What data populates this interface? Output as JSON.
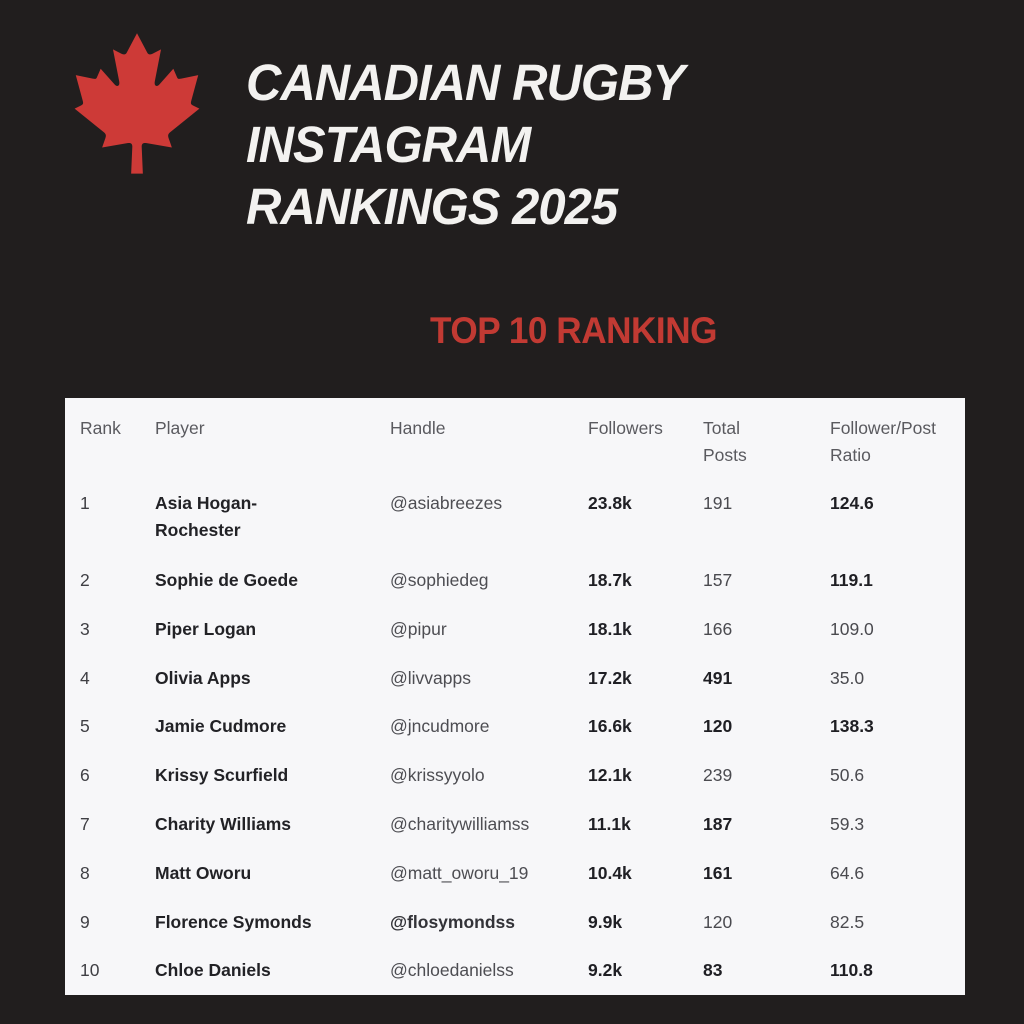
{
  "page": {
    "background_color": "#211e1e",
    "accent_red": "#cd3a37",
    "table_background": "#f7f7f9"
  },
  "header": {
    "logo": "maple-leaf-icon",
    "title_lines": [
      "CANADIAN RUGBY",
      "INSTAGRAM",
      "RANKINGS 2025"
    ],
    "subtitle": "TOP 10 RANKING"
  },
  "table": {
    "columns": [
      "Rank",
      "Player",
      "Handle",
      "Followers",
      "Total Posts",
      "Follower/Post Ratio"
    ],
    "rows": [
      {
        "rank": "1",
        "player": "Asia Hogan-\nRochester",
        "handle": "@asiabreezes",
        "handle_bold": false,
        "followers": "23.8k",
        "posts": "191",
        "posts_bold": false,
        "ratio": "124.6",
        "ratio_bold": true
      },
      {
        "rank": "2",
        "player": "Sophie de Goede",
        "handle": "@sophiedeg",
        "handle_bold": false,
        "followers": "18.7k",
        "posts": "157",
        "posts_bold": false,
        "ratio": "119.1",
        "ratio_bold": true
      },
      {
        "rank": "3",
        "player": "Piper Logan",
        "handle": "@pipur",
        "handle_bold": false,
        "followers": "18.1k",
        "posts": "166",
        "posts_bold": false,
        "ratio": "109.0",
        "ratio_bold": false
      },
      {
        "rank": "4",
        "player": "Olivia Apps",
        "handle": "@livvapps",
        "handle_bold": false,
        "followers": "17.2k",
        "posts": "491",
        "posts_bold": true,
        "ratio": "35.0",
        "ratio_bold": false
      },
      {
        "rank": "5",
        "player": "Jamie Cudmore",
        "handle": "@jncudmore",
        "handle_bold": false,
        "followers": "16.6k",
        "posts": "120",
        "posts_bold": true,
        "ratio": "138.3",
        "ratio_bold": true
      },
      {
        "rank": "6",
        "player": "Krissy Scurfield",
        "handle": "@krissyyolo",
        "handle_bold": false,
        "followers": "12.1k",
        "posts": "239",
        "posts_bold": false,
        "ratio": "50.6",
        "ratio_bold": false
      },
      {
        "rank": "7",
        "player": "Charity Williams",
        "handle": "@charitywilliamss",
        "handle_bold": false,
        "followers": "11.1k",
        "posts": "187",
        "posts_bold": true,
        "ratio": "59.3",
        "ratio_bold": false
      },
      {
        "rank": "8",
        "player": "Matt Oworu",
        "handle": "@matt_oworu_19",
        "handle_bold": false,
        "followers": "10.4k",
        "posts": "161",
        "posts_bold": true,
        "ratio": "64.6",
        "ratio_bold": false
      },
      {
        "rank": "9",
        "player": "Florence Symonds",
        "handle": "@flosymondss",
        "handle_bold": true,
        "followers": "9.9k",
        "posts": "120",
        "posts_bold": false,
        "ratio": "82.5",
        "ratio_bold": false
      },
      {
        "rank": "10",
        "player": "Chloe Daniels",
        "handle": "@chloedanielss",
        "handle_bold": false,
        "followers": "9.2k",
        "posts": "83",
        "posts_bold": true,
        "ratio": "110.8",
        "ratio_bold": true
      }
    ]
  }
}
